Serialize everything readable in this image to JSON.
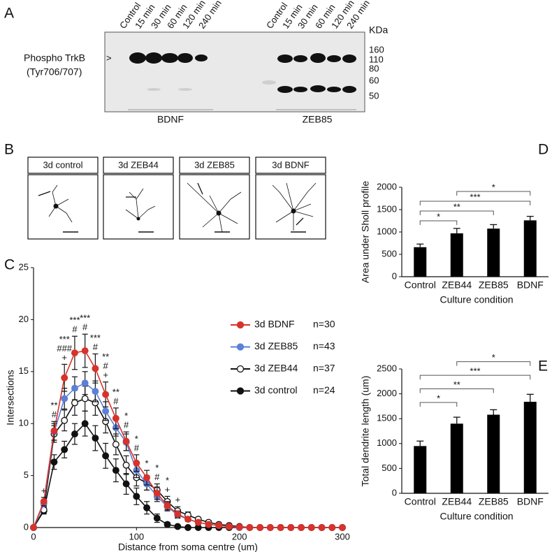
{
  "panel_a": {
    "letter": "A",
    "left_lanes": [
      "Control",
      "15 min",
      "30 min",
      "60 min",
      "120 min",
      "240 min"
    ],
    "right_lanes": [
      "Control",
      "15 min",
      "30 min",
      "60 min",
      "120 min",
      "240 min"
    ],
    "unit": "KDa",
    "markers": [
      "160",
      "110",
      "80",
      "60",
      "50"
    ],
    "protein": "Phospho TrkB",
    "site": "(Tyr706/707)",
    "groups": [
      "BDNF",
      "ZEB85"
    ]
  },
  "panel_b": {
    "letter": "B",
    "labels": [
      "3d control",
      "3d ZEB44",
      "3d ZEB85",
      "3d BDNF"
    ]
  },
  "chart_data": [
    {
      "type": "line",
      "letter": "C",
      "x_label": "Distance from soma centre (um)",
      "y_label": "Intersections",
      "x": [
        0,
        10,
        20,
        30,
        40,
        50,
        60,
        70,
        80,
        90,
        100,
        110,
        120,
        130,
        140,
        150,
        160,
        170,
        180,
        190,
        200,
        210,
        220,
        230,
        240,
        250,
        260,
        270,
        280,
        290,
        300
      ],
      "xlim": [
        0,
        300
      ],
      "xticks": [
        0,
        100,
        200,
        300
      ],
      "ylim": [
        0,
        25
      ],
      "yticks": [
        0,
        5,
        10,
        15,
        20,
        25
      ],
      "series": [
        {
          "name": "3d BDNF",
          "n": "n=30",
          "color": "#d8322a",
          "values": [
            0,
            2.5,
            9.3,
            14.4,
            16.8,
            17,
            15.3,
            12.8,
            10.5,
            8.3,
            6.2,
            4.8,
            3.3,
            2.1,
            1.3,
            0.8,
            0.5,
            0.3,
            0.2,
            0.1,
            0.05,
            0,
            0,
            0,
            0,
            0,
            0,
            0,
            0,
            0,
            0
          ],
          "errors": [
            0,
            0.4,
            0.9,
            1.3,
            1.6,
            1.6,
            1.4,
            1.2,
            1.0,
            0.9,
            0.8,
            0.7,
            0.6,
            0.4,
            0.3,
            0.2,
            0.2,
            0.1,
            0.1,
            0.1,
            0,
            0,
            0,
            0,
            0,
            0,
            0,
            0,
            0,
            0,
            0
          ]
        },
        {
          "name": "3d ZEB85",
          "n": "n=43",
          "color": "#5b80d8",
          "values": [
            0,
            2.3,
            9.2,
            12.4,
            13.4,
            13.9,
            13.1,
            11.2,
            9.6,
            8.2,
            5.5,
            4.2,
            3.0,
            2.0,
            1.2,
            0.8,
            0.5,
            0.3,
            0.2,
            0.1,
            0,
            0,
            0,
            0,
            0,
            0,
            0,
            0,
            0,
            0,
            0
          ],
          "errors": [
            0,
            0.3,
            0.8,
            1.0,
            1.1,
            1.1,
            1.0,
            0.9,
            0.8,
            0.8,
            0.7,
            0.6,
            0.5,
            0.4,
            0.3,
            0.2,
            0.2,
            0.1,
            0.1,
            0.1,
            0,
            0,
            0,
            0,
            0,
            0,
            0,
            0,
            0,
            0,
            0
          ]
        },
        {
          "name": "3d ZEB44",
          "n": "n=37",
          "color": "#111111",
          "marker_fill": "#ffffff",
          "values": [
            0,
            1.7,
            9.0,
            10.3,
            12.0,
            12.4,
            12.0,
            10.2,
            8.0,
            6.0,
            4.8,
            4.3,
            3.6,
            2.5,
            1.6,
            1.2,
            0.8,
            0.5,
            0.3,
            0.2,
            0.1,
            0,
            0,
            0,
            0,
            0,
            0,
            0,
            0,
            0,
            0
          ],
          "errors": [
            0,
            0.3,
            0.8,
            1.0,
            1.2,
            1.2,
            1.2,
            1.1,
            1.0,
            0.9,
            0.8,
            0.7,
            0.6,
            0.5,
            0.4,
            0.3,
            0.2,
            0.2,
            0.1,
            0.1,
            0,
            0,
            0,
            0,
            0,
            0,
            0,
            0,
            0,
            0,
            0
          ]
        },
        {
          "name": "3d control",
          "n": "n=24",
          "color": "#111111",
          "values": [
            0,
            1.6,
            6.3,
            7.5,
            9.0,
            10.0,
            8.6,
            6.9,
            5.5,
            4.2,
            3.0,
            1.9,
            0.9,
            0.3,
            0.1,
            0,
            0,
            0,
            0,
            0,
            0,
            0,
            0,
            0,
            0,
            0,
            0,
            0,
            0,
            0,
            0
          ],
          "errors": [
            0,
            0.3,
            0.7,
            0.8,
            1.0,
            1.2,
            1.2,
            1.2,
            1.1,
            1.0,
            0.8,
            0.6,
            0.4,
            0.2,
            0.1,
            0,
            0,
            0,
            0,
            0,
            0,
            0,
            0,
            0,
            0,
            0,
            0,
            0,
            0,
            0,
            0
          ]
        }
      ],
      "annotations": [
        {
          "x": 10,
          "lines": [
            "+"
          ]
        },
        {
          "x": 20,
          "lines": [
            "**",
            "#"
          ]
        },
        {
          "x": 30,
          "lines": [
            "***",
            "###",
            "+"
          ]
        },
        {
          "x": 40,
          "lines": [
            "***",
            "#"
          ]
        },
        {
          "x": 50,
          "lines": [
            "***",
            "#"
          ]
        },
        {
          "x": 60,
          "lines": [
            "***",
            "#"
          ]
        },
        {
          "x": 70,
          "lines": [
            "**",
            "#",
            "+"
          ]
        },
        {
          "x": 80,
          "lines": [
            "**",
            "#"
          ]
        },
        {
          "x": 90,
          "lines": [
            "*",
            "#"
          ]
        },
        {
          "x": 100,
          "lines": [
            "*",
            "#"
          ]
        },
        {
          "x": 110,
          "lines": [
            "*"
          ]
        },
        {
          "x": 120,
          "lines": [
            "*",
            "#"
          ]
        },
        {
          "x": 130,
          "lines": [
            "*",
            "+"
          ]
        },
        {
          "x": 140,
          "lines": [
            "+"
          ]
        }
      ]
    },
    {
      "type": "bar",
      "letter": "D",
      "x_label": "Culture condition",
      "y_label": "Area under Sholl profile",
      "categories": [
        "Control",
        "ZEB44",
        "ZEB85",
        "BDNF"
      ],
      "values": [
        660,
        970,
        1075,
        1260
      ],
      "errors": [
        70,
        110,
        90,
        90
      ],
      "color": "#000000",
      "ylim": [
        0,
        2000
      ],
      "yticks": [
        0,
        500,
        1000,
        1500,
        2000
      ],
      "comparisons": [
        {
          "from": "Control",
          "to": "ZEB44",
          "label": "*"
        },
        {
          "from": "Control",
          "to": "ZEB85",
          "label": "**"
        },
        {
          "from": "Control",
          "to": "BDNF",
          "label": "***"
        },
        {
          "from": "ZEB44",
          "to": "BDNF",
          "label": "*"
        }
      ]
    },
    {
      "type": "bar",
      "letter": "E",
      "x_label": "Culture condition",
      "y_label": "Total dendrite length (um)",
      "categories": [
        "Control",
        "ZEB44",
        "ZEB85",
        "BDNF"
      ],
      "values": [
        950,
        1400,
        1580,
        1840
      ],
      "errors": [
        100,
        130,
        100,
        150
      ],
      "color": "#000000",
      "ylim": [
        0,
        2500
      ],
      "yticks": [
        0,
        500,
        1000,
        1500,
        2000,
        2500
      ],
      "comparisons": [
        {
          "from": "Control",
          "to": "ZEB44",
          "label": "*"
        },
        {
          "from": "Control",
          "to": "ZEB85",
          "label": "**"
        },
        {
          "from": "Control",
          "to": "BDNF",
          "label": "***"
        },
        {
          "from": "ZEB44",
          "to": "BDNF",
          "label": "*"
        }
      ]
    }
  ]
}
